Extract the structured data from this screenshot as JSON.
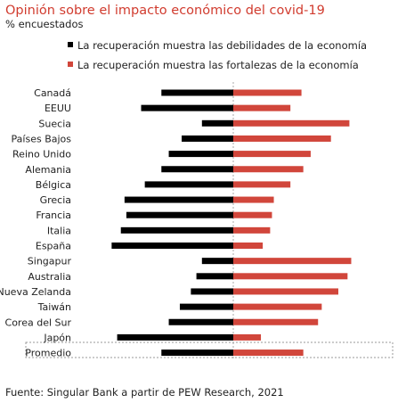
{
  "chart_data": {
    "type": "bar",
    "orientation": "horizontal-diverging",
    "title": "Opinión sobre el impacto económico del covid-19",
    "subtitle": "% encuestados",
    "categories": [
      "Canadá",
      "EEUU",
      "Suecia",
      "Países Bajos",
      "Reino Unido",
      "Alemania",
      "Bélgica",
      "Grecia",
      "Francia",
      "Italia",
      "España",
      "Singapur",
      "Australia",
      "Nueva Zelanda",
      "Taiwán",
      "Corea del Sur",
      "Japón",
      "Promedio"
    ],
    "series": [
      {
        "name": "La recuperación muestra las debilidades de la economía",
        "color": "#000000",
        "direction": "left",
        "values": [
          39,
          50,
          17,
          28,
          35,
          39,
          48,
          59,
          58,
          61,
          66,
          17,
          20,
          23,
          29,
          35,
          63,
          39
        ]
      },
      {
        "name": "La recuperación muestra las fortalezas de la economía",
        "color": "#d1463b",
        "direction": "right",
        "values": [
          37,
          31,
          63,
          53,
          42,
          38,
          31,
          22,
          21,
          20,
          16,
          64,
          62,
          57,
          48,
          46,
          15,
          38
        ]
      }
    ],
    "highlighted_category": "Promedio",
    "source": "Fuente: Singular Bank a partir de PEW Research, 2021"
  }
}
